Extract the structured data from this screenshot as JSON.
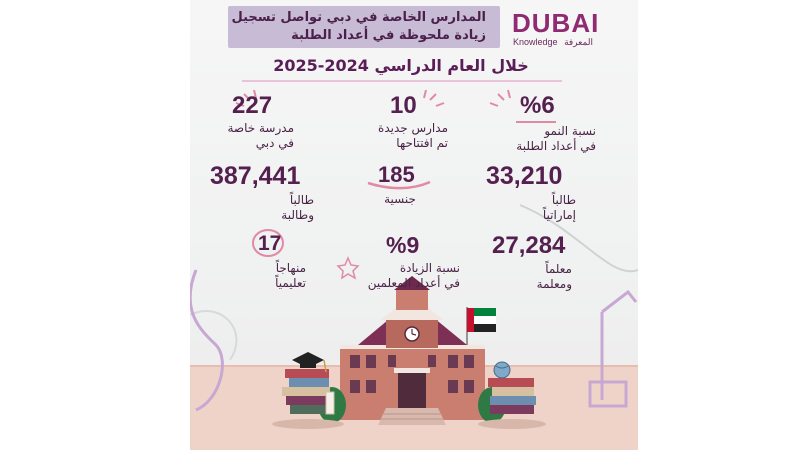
{
  "header": {
    "title_line1": "المدارس الخاصة في دبي تواصل تسجيل",
    "title_line2": "زيادة ملحوظة في أعداد الطلبة"
  },
  "logo": {
    "brand": "DUBAI",
    "sub_en": "Knowledge",
    "sub_ar": "المعرفة"
  },
  "subtitle": "خلال العام الدراسي 2024-2025",
  "stats": {
    "private_schools": {
      "number": "227",
      "line1": "مدرسة خاصة",
      "line2": "في دبي"
    },
    "new_schools": {
      "number": "10",
      "line1": "مدارس جديدة",
      "line2": "تم افتتاحها"
    },
    "growth": {
      "number": "%6",
      "line1": "نسبة النمو",
      "line2": "في أعداد الطلبة"
    },
    "students": {
      "number": "387,441",
      "line1": "طالباً",
      "line2": "وطالبة"
    },
    "nationalities": {
      "number": "185",
      "line1": "جنسية"
    },
    "emirati_students": {
      "number": "33,210",
      "line1": "طالباً",
      "line2": "إماراتياً"
    },
    "curricula": {
      "number": "17",
      "line1": "منهاجاً",
      "line2": "تعليمياً"
    },
    "teacher_increase": {
      "number": "%9",
      "line1": "نسبة الزيادة",
      "line2": "في أعداد المعلمين"
    },
    "teachers": {
      "number": "27,284",
      "line1": "معلماً",
      "line2": "ومعلمة"
    }
  },
  "colors": {
    "primary": "#55204f",
    "banner": "#c8bbd6",
    "accent_pink": "#e08aa5",
    "logo": "#8f2a73",
    "floor": "#f0d3c8"
  },
  "illustration": {
    "building_clock": "clock-icon",
    "flag": "uae-flag-icon",
    "cap": "graduation-cap-icon",
    "stacks": "book-stack-icon"
  }
}
